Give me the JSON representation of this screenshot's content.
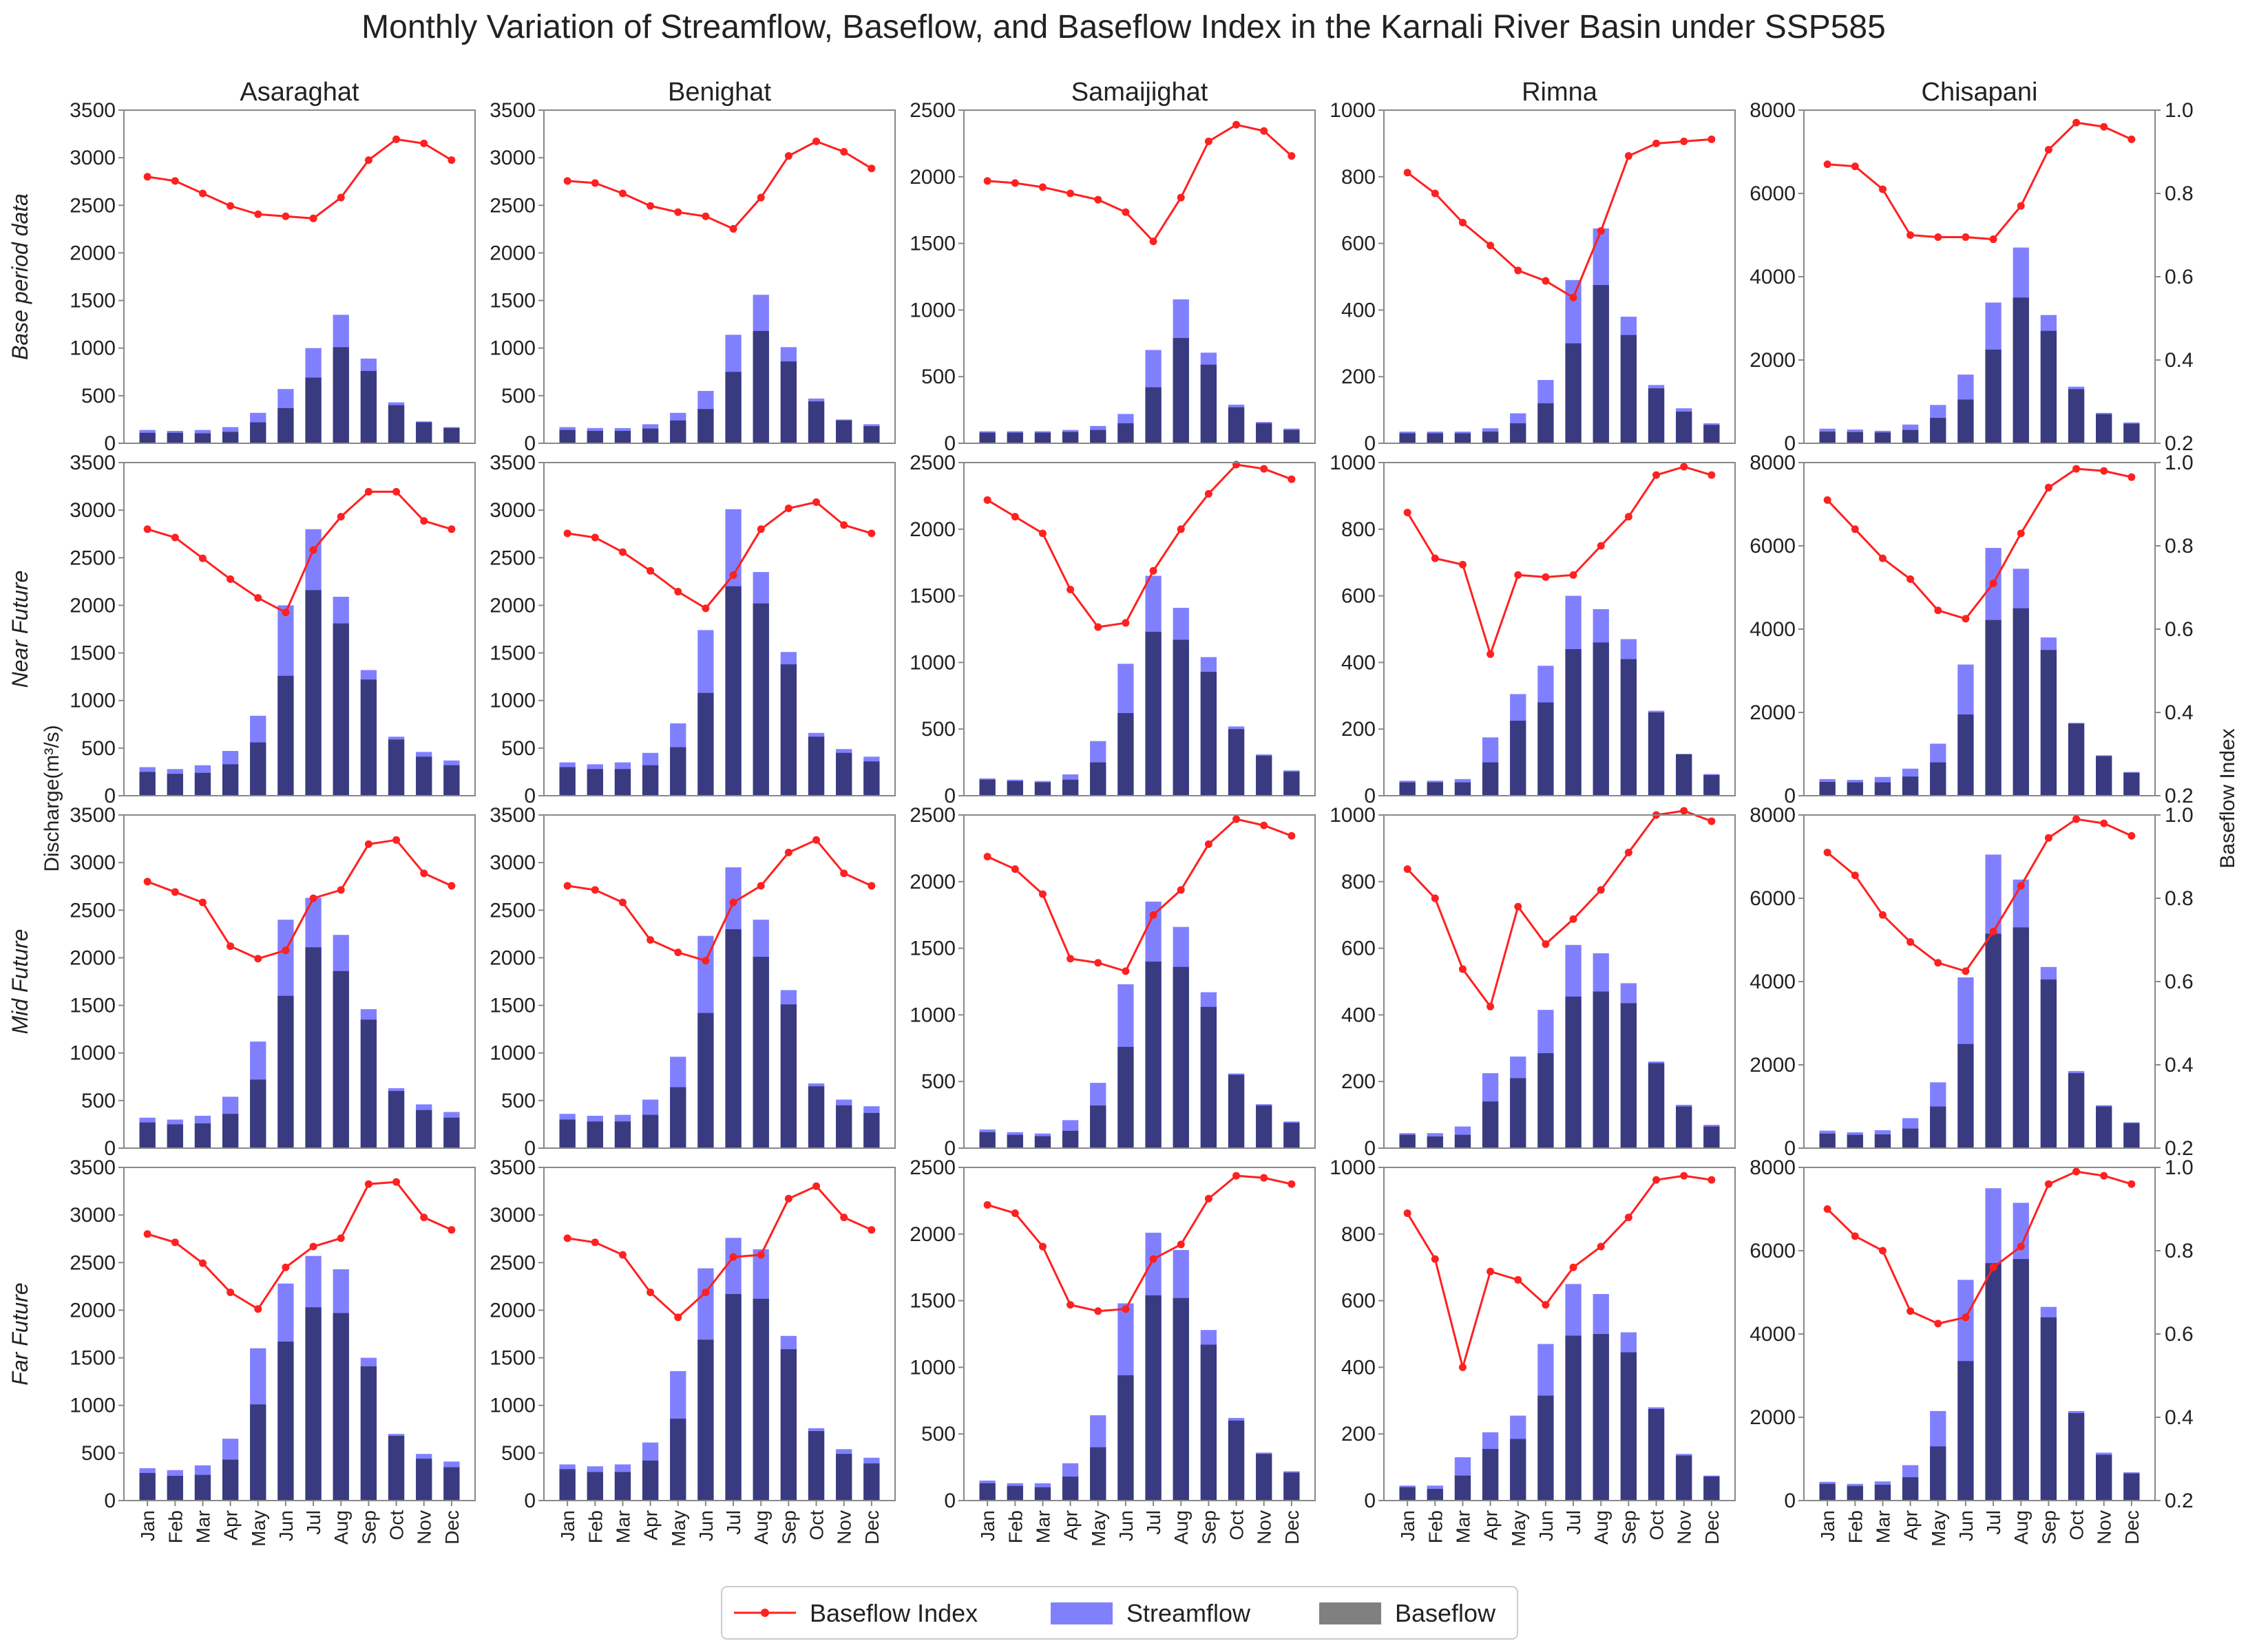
{
  "chart_data": {
    "type": "bar",
    "title": "Monthly Variation of Streamflow, Baseflow, and Baseflow Index in the Karnali River Basin under SSP585",
    "ylabel": "Discharge(m³/s)",
    "y2label": "Baseflow Index",
    "categories": [
      "Jan",
      "Feb",
      "Mar",
      "Apr",
      "May",
      "Jun",
      "Jul",
      "Aug",
      "Sep",
      "Oct",
      "Nov",
      "Dec"
    ],
    "stations": [
      {
        "name": "Asaraghat",
        "ylim": [
          0,
          3500
        ],
        "yticks": [
          "0",
          "500",
          "1000",
          "1500",
          "2000",
          "2500",
          "3000",
          "3500"
        ]
      },
      {
        "name": "Benighat",
        "ylim": [
          0,
          3500
        ],
        "yticks": [
          "0",
          "500",
          "1000",
          "1500",
          "2000",
          "2500",
          "3000",
          "3500"
        ]
      },
      {
        "name": "Samaijighat",
        "ylim": [
          0,
          2500
        ],
        "yticks": [
          "0",
          "500",
          "1000",
          "1500",
          "2000",
          "2500"
        ]
      },
      {
        "name": "Rimna",
        "ylim": [
          0,
          1000
        ],
        "yticks": [
          "0",
          "200",
          "400",
          "600",
          "800",
          "1000"
        ]
      },
      {
        "name": "Chisapani",
        "ylim": [
          0,
          8000
        ],
        "yticks": [
          "0",
          "2000",
          "4000",
          "6000",
          "8000"
        ]
      }
    ],
    "periods": [
      "Base period data",
      "Near Future",
      "Mid Future",
      "Far Future"
    ],
    "y2lim": [
      0.2,
      1.0
    ],
    "y2ticks": [
      "0.2",
      "0.4",
      "0.6",
      "0.8",
      "1.0"
    ],
    "legend": {
      "bfi": "Baseflow Index",
      "streamflow": "Streamflow",
      "baseflow": "Baseflow"
    },
    "colors": {
      "streamflow": "#8080ff",
      "baseflow": "#3a3a80",
      "bfi": "#ff2020",
      "axis": "#888888"
    },
    "series": {
      "streamflow": [
        [
          [
            140,
            130,
            140,
            170,
            320,
            570,
            1000,
            1350,
            890,
            430,
            230,
            170
          ],
          [
            170,
            160,
            160,
            200,
            320,
            550,
            1140,
            1560,
            1010,
            470,
            250,
            200
          ],
          [
            90,
            90,
            90,
            100,
            130,
            220,
            700,
            1080,
            680,
            290,
            160,
            110
          ],
          [
            35,
            35,
            35,
            45,
            90,
            190,
            490,
            645,
            380,
            175,
            105,
            60
          ],
          [
            350,
            330,
            300,
            450,
            920,
            1650,
            3380,
            4700,
            3080,
            1360,
            730,
            500
          ]
        ],
        [
          [
            300,
            280,
            320,
            470,
            840,
            2000,
            2800,
            2090,
            1320,
            620,
            460,
            370
          ],
          [
            350,
            330,
            350,
            450,
            760,
            1740,
            3010,
            2350,
            1510,
            660,
            490,
            410
          ],
          [
            130,
            120,
            110,
            160,
            410,
            990,
            1650,
            1410,
            1040,
            520,
            310,
            190
          ],
          [
            45,
            45,
            50,
            175,
            305,
            390,
            600,
            560,
            470,
            255,
            125,
            65
          ],
          [
            400,
            380,
            450,
            650,
            1250,
            3150,
            5950,
            5450,
            3800,
            1750,
            970,
            570
          ]
        ],
        [
          [
            320,
            300,
            340,
            540,
            1120,
            2400,
            2630,
            2240,
            1460,
            630,
            460,
            380
          ],
          [
            360,
            340,
            350,
            510,
            960,
            2230,
            2950,
            2400,
            1660,
            680,
            510,
            440
          ],
          [
            140,
            120,
            110,
            210,
            490,
            1230,
            1850,
            1660,
            1170,
            560,
            330,
            200
          ],
          [
            45,
            45,
            65,
            225,
            275,
            415,
            610,
            585,
            495,
            260,
            130,
            70
          ],
          [
            420,
            380,
            430,
            720,
            1580,
            4100,
            7050,
            6450,
            4350,
            1850,
            1030,
            620
          ]
        ],
        [
          [
            340,
            320,
            370,
            650,
            1600,
            2280,
            2570,
            2430,
            1500,
            700,
            490,
            410
          ],
          [
            380,
            360,
            380,
            610,
            1360,
            2440,
            2760,
            2640,
            1730,
            760,
            540,
            450
          ],
          [
            150,
            130,
            130,
            280,
            640,
            1480,
            2010,
            1880,
            1280,
            620,
            360,
            220
          ],
          [
            45,
            45,
            130,
            205,
            255,
            470,
            650,
            620,
            505,
            280,
            140,
            75
          ],
          [
            450,
            400,
            460,
            850,
            2150,
            5300,
            7500,
            7150,
            4650,
            2150,
            1150,
            680
          ]
        ]
      ],
      "baseflow": [
        [
          110,
          110,
          105,
          120,
          220,
          370,
          690,
          1010,
          760,
          400,
          220,
          160
        ],
        [
          140,
          130,
          130,
          155,
          240,
          360,
          750,
          1180,
          860,
          440,
          240,
          180
        ],
        [
          80,
          80,
          80,
          85,
          100,
          150,
          420,
          790,
          590,
          270,
          150,
          100
        ],
        [
          30,
          30,
          30,
          35,
          60,
          120,
          300,
          475,
          325,
          165,
          95,
          55
        ],
        [
          280,
          270,
          260,
          320,
          610,
          1050,
          2250,
          3500,
          2700,
          1300,
          700,
          470
        ]
      ],
      "baseflow_future": [
        [
          [
            250,
            230,
            240,
            330,
            560,
            1260,
            2160,
            1810,
            1220,
            590,
            410,
            320
          ],
          [
            300,
            280,
            280,
            320,
            510,
            1080,
            2200,
            2020,
            1380,
            620,
            450,
            360
          ],
          [
            120,
            110,
            100,
            120,
            250,
            620,
            1230,
            1170,
            930,
            500,
            300,
            180
          ],
          [
            40,
            40,
            40,
            100,
            225,
            280,
            440,
            460,
            410,
            250,
            125,
            62
          ],
          [
            330,
            320,
            320,
            460,
            800,
            1950,
            4220,
            4500,
            3500,
            1730,
            950,
            550
          ]
        ],
        [
          [
            270,
            250,
            260,
            360,
            720,
            1600,
            2110,
            1860,
            1350,
            600,
            400,
            320
          ],
          [
            300,
            280,
            280,
            350,
            640,
            1420,
            2300,
            2010,
            1510,
            650,
            450,
            370
          ],
          [
            120,
            100,
            90,
            130,
            320,
            760,
            1400,
            1360,
            1060,
            550,
            320,
            190
          ],
          [
            40,
            35,
            40,
            140,
            210,
            285,
            455,
            470,
            435,
            255,
            125,
            65
          ],
          [
            350,
            320,
            330,
            470,
            1000,
            2500,
            5150,
            5300,
            4050,
            1800,
            1000,
            600
          ]
        ],
        [
          [
            290,
            260,
            270,
            430,
            1010,
            1670,
            2030,
            1970,
            1410,
            680,
            440,
            350
          ],
          [
            330,
            300,
            300,
            420,
            860,
            1690,
            2170,
            2120,
            1590,
            730,
            490,
            390
          ],
          [
            130,
            110,
            100,
            180,
            400,
            940,
            1540,
            1520,
            1170,
            600,
            350,
            210
          ],
          [
            40,
            35,
            75,
            155,
            185,
            315,
            495,
            500,
            445,
            275,
            135,
            72
          ],
          [
            400,
            350,
            380,
            560,
            1300,
            3350,
            5700,
            5800,
            4400,
            2100,
            1100,
            650
          ]
        ]
      ],
      "bfi": [
        [
          [
            0.84,
            0.83,
            0.8,
            0.77,
            0.75,
            0.745,
            0.74,
            0.79,
            0.88,
            0.93,
            0.92,
            0.88
          ],
          [
            0.83,
            0.825,
            0.8,
            0.77,
            0.755,
            0.745,
            0.715,
            0.79,
            0.89,
            0.925,
            0.9,
            0.86
          ],
          [
            0.83,
            0.825,
            0.815,
            0.8,
            0.785,
            0.755,
            0.685,
            0.79,
            0.925,
            0.965,
            0.95,
            0.89
          ],
          [
            0.85,
            0.8,
            0.73,
            0.675,
            0.615,
            0.59,
            0.55,
            0.71,
            0.89,
            0.92,
            0.925,
            0.93
          ],
          [
            0.87,
            0.865,
            0.81,
            0.7,
            0.695,
            0.695,
            0.69,
            0.77,
            0.905,
            0.97,
            0.96,
            0.93
          ]
        ],
        [
          [
            0.84,
            0.82,
            0.77,
            0.72,
            0.675,
            0.64,
            0.79,
            0.87,
            0.93,
            0.93,
            0.86,
            0.84
          ],
          [
            0.83,
            0.82,
            0.785,
            0.74,
            0.69,
            0.65,
            0.73,
            0.84,
            0.89,
            0.905,
            0.85,
            0.83
          ],
          [
            0.91,
            0.87,
            0.83,
            0.695,
            0.605,
            0.615,
            0.74,
            0.84,
            0.925,
            0.995,
            0.985,
            0.96
          ],
          [
            0.88,
            0.77,
            0.755,
            0.54,
            0.73,
            0.725,
            0.73,
            0.8,
            0.87,
            0.97,
            0.99,
            0.97
          ],
          [
            0.91,
            0.84,
            0.77,
            0.72,
            0.645,
            0.625,
            0.71,
            0.83,
            0.94,
            0.985,
            0.98,
            0.965
          ]
        ],
        [
          [
            0.84,
            0.815,
            0.79,
            0.685,
            0.655,
            0.675,
            0.8,
            0.82,
            0.93,
            0.94,
            0.86,
            0.83
          ],
          [
            0.83,
            0.82,
            0.79,
            0.7,
            0.67,
            0.65,
            0.79,
            0.83,
            0.91,
            0.94,
            0.86,
            0.83
          ],
          [
            0.9,
            0.87,
            0.81,
            0.655,
            0.645,
            0.625,
            0.76,
            0.82,
            0.93,
            0.99,
            0.975,
            0.95
          ],
          [
            0.87,
            0.8,
            0.63,
            0.54,
            0.78,
            0.69,
            0.75,
            0.82,
            0.91,
            1.0,
            1.01,
            0.985
          ],
          [
            0.91,
            0.855,
            0.76,
            0.695,
            0.645,
            0.625,
            0.72,
            0.83,
            0.945,
            0.99,
            0.98,
            0.95
          ]
        ],
        [
          [
            0.84,
            0.82,
            0.77,
            0.7,
            0.66,
            0.76,
            0.81,
            0.83,
            0.96,
            0.965,
            0.88,
            0.85
          ],
          [
            0.83,
            0.82,
            0.79,
            0.7,
            0.64,
            0.7,
            0.785,
            0.79,
            0.925,
            0.955,
            0.88,
            0.85
          ],
          [
            0.91,
            0.89,
            0.81,
            0.67,
            0.655,
            0.66,
            0.78,
            0.815,
            0.925,
            0.98,
            0.975,
            0.96
          ],
          [
            0.89,
            0.78,
            0.52,
            0.75,
            0.73,
            0.67,
            0.76,
            0.81,
            0.88,
            0.97,
            0.98,
            0.97
          ],
          [
            0.9,
            0.835,
            0.8,
            0.655,
            0.625,
            0.64,
            0.76,
            0.81,
            0.96,
            0.99,
            0.98,
            0.96
          ]
        ]
      ]
    }
  }
}
